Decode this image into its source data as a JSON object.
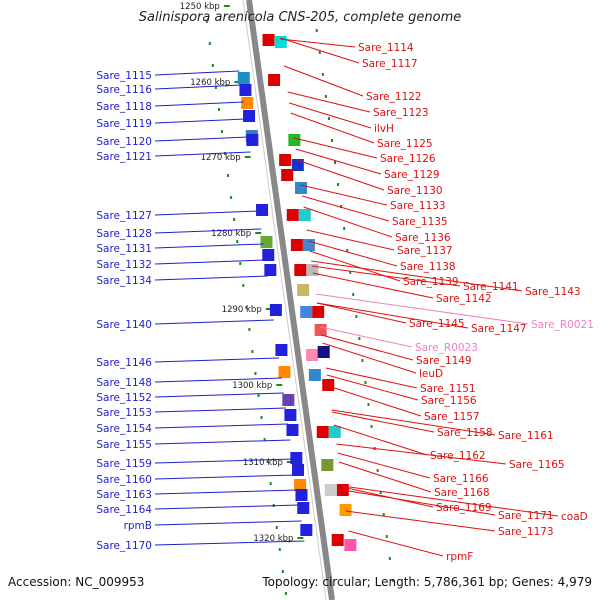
{
  "title": "Salinispora arenicola CNS-205, complete genome",
  "footer": {
    "accession": "Accession: NC_009953",
    "stats": "Topology: circular; Length: 5,786,361 bp; Genes: 4,979"
  },
  "scale_ticks": [
    "1250 kbp",
    "1260 kbp",
    "1270 kbp",
    "1280 kbp",
    "1290 kbp",
    "1300 kbp",
    "1310 kbp",
    "1320 kbp"
  ],
  "colors": {
    "left_labels": "#1f1fcc",
    "right_labels": "#dd1111",
    "rna_labels": "#f080c0",
    "backbone": "#888888",
    "tick": "#228822"
  },
  "left_genes": [
    "Sare_1115",
    "Sare_1116",
    "Sare_1118",
    "Sare_1119",
    "Sare_1120",
    "Sare_1121",
    "Sare_1127",
    "Sare_1128",
    "Sare_1131",
    "Sare_1132",
    "Sare_1134",
    "Sare_1140",
    "Sare_1146",
    "Sare_1148",
    "Sare_1152",
    "Sare_1153",
    "Sare_1154",
    "Sare_1155",
    "Sare_1159",
    "Sare_1160",
    "Sare_1163",
    "Sare_1164",
    "rpmB",
    "Sare_1170"
  ],
  "right_genes": [
    "Sare_1114",
    "Sare_1117",
    "Sare_1122",
    "Sare_1123",
    "ilvH",
    "Sare_1125",
    "Sare_1126",
    "Sare_1129",
    "Sare_1130",
    "Sare_1133",
    "Sare_1135",
    "Sare_1136",
    "Sare_1137",
    "Sare_1138",
    "Sare_1139",
    "Sare_1141",
    "Sare_1142",
    "Sare_1143",
    "Sare_1145",
    "Sare_1147",
    "Sare_R0021",
    "Sare_R0023",
    "Sare_1149",
    "leuD",
    "Sare_1151",
    "Sare_1156",
    "Sare_1157",
    "Sare_1158",
    "Sare_1161",
    "Sare_1162",
    "Sare_1165",
    "Sare_1166",
    "Sare_1168",
    "Sare_1169",
    "Sare_1171",
    "coaD",
    "Sare_1173",
    "rpmF"
  ],
  "rna_genes": [
    "Sare_R0021",
    "Sare_R0023"
  ]
}
